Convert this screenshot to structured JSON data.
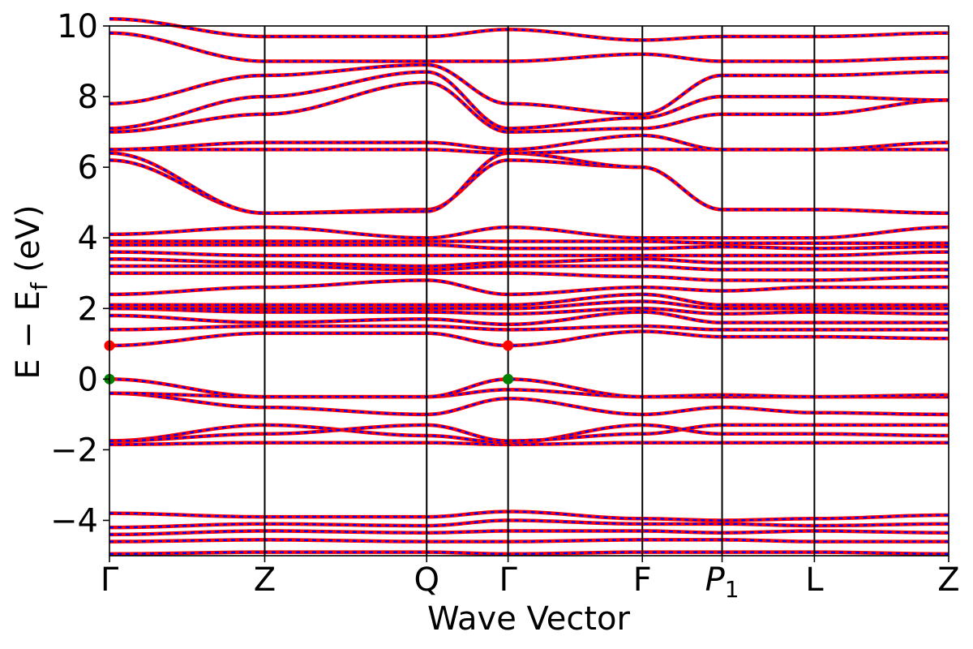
{
  "chart_data": {
    "type": "line",
    "title": "",
    "xlabel": "Wave Vector",
    "ylabel": "E − E_f (eV)",
    "ylabel_main": "E − E",
    "ylabel_sub": "f",
    "ylabel_unit": " (eV)",
    "ylim": [
      -5,
      10
    ],
    "yticks": [
      -4,
      -2,
      0,
      2,
      4,
      6,
      8,
      10
    ],
    "ytick_labels": [
      "−4",
      "−2",
      "0",
      "2",
      "4",
      "6",
      "8",
      "10"
    ],
    "grid": false,
    "legend": "none",
    "kpath": [
      {
        "label": "Γ",
        "x": 0.0
      },
      {
        "label": "Z",
        "x": 0.185
      },
      {
        "label": "Q",
        "x": 0.378
      },
      {
        "label": "Γ",
        "x": 0.475
      },
      {
        "label": "F",
        "x": 0.635
      },
      {
        "label": "P",
        "sub": "1",
        "italic": true,
        "x": 0.73
      },
      {
        "label": "L",
        "x": 0.84
      },
      {
        "label": "Z",
        "x": 1.0
      }
    ],
    "series_colors": {
      "solid": "#ff0000",
      "dashed": "#0000ff"
    },
    "bands_sampled_at_kpoints": [
      [
        -4.95,
        -4.9,
        -4.9,
        -4.95,
        -4.9,
        -4.9,
        -4.9,
        -4.95
      ],
      [
        -4.6,
        -4.55,
        -4.6,
        -4.6,
        -4.55,
        -4.55,
        -4.6,
        -4.6
      ],
      [
        -4.4,
        -4.3,
        -4.35,
        -4.3,
        -4.3,
        -4.35,
        -4.3,
        -4.35
      ],
      [
        -4.2,
        -4.1,
        -4.15,
        -4.0,
        -4.1,
        -4.1,
        -4.15,
        -4.1
      ],
      [
        -3.8,
        -3.9,
        -3.9,
        -3.75,
        -3.95,
        -4.0,
        -3.95,
        -3.85
      ],
      [
        -1.85,
        -1.8,
        -1.8,
        -1.85,
        -1.8,
        -1.8,
        -1.8,
        -1.8
      ],
      [
        -1.75,
        -1.3,
        -1.6,
        -1.8,
        -1.3,
        -1.55,
        -1.55,
        -1.6
      ],
      [
        -1.75,
        -1.55,
        -1.3,
        -1.75,
        -1.55,
        -1.3,
        -1.3,
        -1.3
      ],
      [
        -0.4,
        -0.8,
        -1.0,
        -0.55,
        -1.0,
        -0.8,
        -0.95,
        -1.0
      ],
      [
        -0.4,
        -0.5,
        -0.5,
        -0.3,
        -0.5,
        -0.5,
        -0.5,
        -0.5
      ],
      [
        0.0,
        -0.5,
        -0.5,
        0.0,
        -0.5,
        -0.45,
        -0.5,
        -0.45
      ],
      [
        0.95,
        1.3,
        1.3,
        0.95,
        1.35,
        1.2,
        1.2,
        1.15
      ],
      [
        1.4,
        1.5,
        1.5,
        1.4,
        1.5,
        1.4,
        1.4,
        1.4
      ],
      [
        1.8,
        1.6,
        1.7,
        1.55,
        1.9,
        1.6,
        1.6,
        1.6
      ],
      [
        2.0,
        1.9,
        1.9,
        1.85,
        2.0,
        1.85,
        1.9,
        1.85
      ],
      [
        2.0,
        2.0,
        2.0,
        2.0,
        2.2,
        2.0,
        2.0,
        2.0
      ],
      [
        2.1,
        2.1,
        2.1,
        2.1,
        2.4,
        2.1,
        2.1,
        2.1
      ],
      [
        2.4,
        2.6,
        2.8,
        2.4,
        2.6,
        2.5,
        2.6,
        2.6
      ],
      [
        3.0,
        3.0,
        3.0,
        3.0,
        2.9,
        2.8,
        2.8,
        2.9
      ],
      [
        3.2,
        3.2,
        3.1,
        3.2,
        3.2,
        3.1,
        3.1,
        3.1
      ],
      [
        3.4,
        3.3,
        3.2,
        3.3,
        3.4,
        3.3,
        3.3,
        3.3
      ],
      [
        3.6,
        3.5,
        3.5,
        3.5,
        3.5,
        3.5,
        3.5,
        3.6
      ],
      [
        3.8,
        3.8,
        3.8,
        3.7,
        3.7,
        3.75,
        3.7,
        3.75
      ],
      [
        3.9,
        3.9,
        3.9,
        3.9,
        3.9,
        3.85,
        3.85,
        3.85
      ],
      [
        4.1,
        4.3,
        4.0,
        4.3,
        4.0,
        4.0,
        4.0,
        4.3
      ],
      [
        6.2,
        4.7,
        4.8,
        6.2,
        6.0,
        4.8,
        4.8,
        4.7
      ],
      [
        6.4,
        4.7,
        4.75,
        6.4,
        6.0,
        4.8,
        4.8,
        4.7
      ],
      [
        6.5,
        6.5,
        6.5,
        6.4,
        6.5,
        6.5,
        6.5,
        6.5
      ],
      [
        6.5,
        6.7,
        6.7,
        6.5,
        6.9,
        6.5,
        6.5,
        6.7
      ],
      [
        7.0,
        7.5,
        8.4,
        7.0,
        7.1,
        7.5,
        7.5,
        7.9
      ],
      [
        7.1,
        8.0,
        8.7,
        7.1,
        7.4,
        8.0,
        8.0,
        7.9
      ],
      [
        7.8,
        8.6,
        8.9,
        7.8,
        7.5,
        8.6,
        8.6,
        8.7
      ],
      [
        9.8,
        9.0,
        9.0,
        9.0,
        9.2,
        9.0,
        9.0,
        9.1
      ],
      [
        10.2,
        9.7,
        9.7,
        9.9,
        9.6,
        9.7,
        9.7,
        9.8
      ]
    ],
    "markers": [
      {
        "x": 0.0,
        "y": 0.95,
        "color": "#ff0000"
      },
      {
        "x": 0.0,
        "y": 0.0,
        "color": "#008000"
      },
      {
        "x": 0.475,
        "y": 0.95,
        "color": "#ff0000"
      },
      {
        "x": 0.475,
        "y": 0.0,
        "color": "#008000"
      }
    ]
  }
}
